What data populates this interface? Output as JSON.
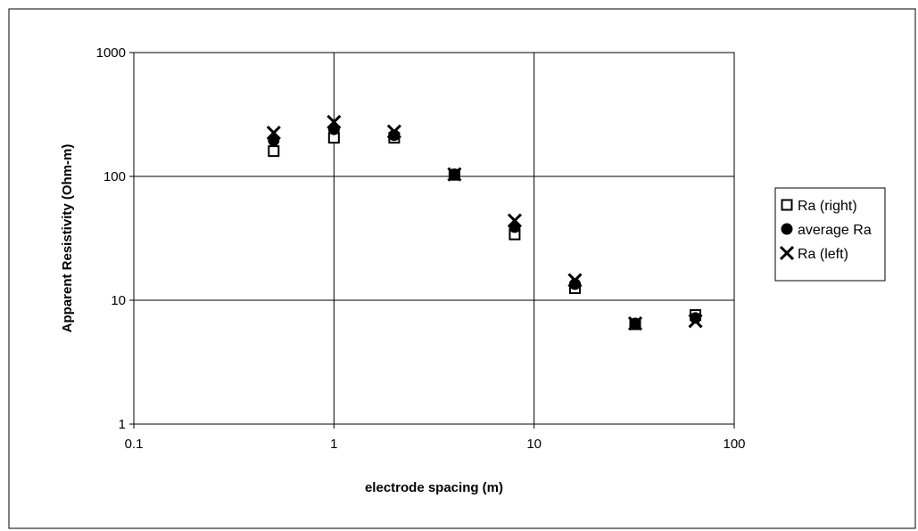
{
  "chart_data": {
    "type": "scatter",
    "title": "",
    "xlabel": "electrode spacing (m)",
    "ylabel": "Apparent Resistivity (Ohm-m)",
    "x_scale": "log",
    "y_scale": "log",
    "xlim": [
      0.1,
      100
    ],
    "ylim": [
      1,
      1000
    ],
    "x_ticks": [
      "0.1",
      "1",
      "10",
      "100"
    ],
    "y_ticks": [
      "1",
      "10",
      "100",
      "1000"
    ],
    "grid": true,
    "legend_position": "right",
    "series": [
      {
        "name": "Ra (right)",
        "marker": "open-square",
        "x": [
          0.5,
          1,
          2,
          4,
          8,
          16,
          32,
          64
        ],
        "y": [
          160,
          205,
          205,
          103,
          34,
          12.5,
          6.4,
          7.6
        ]
      },
      {
        "name": "average Ra",
        "marker": "filled-circle",
        "x": [
          0.5,
          1,
          2,
          4,
          8,
          16,
          32,
          64
        ],
        "y": [
          195,
          240,
          215,
          104,
          39,
          13.5,
          6.5,
          7.2
        ]
      },
      {
        "name": "Ra (left)",
        "marker": "x",
        "x": [
          0.5,
          1,
          2,
          4,
          8,
          16,
          32,
          64
        ],
        "y": [
          225,
          275,
          230,
          104,
          44,
          14.5,
          6.5,
          6.8
        ]
      }
    ]
  }
}
